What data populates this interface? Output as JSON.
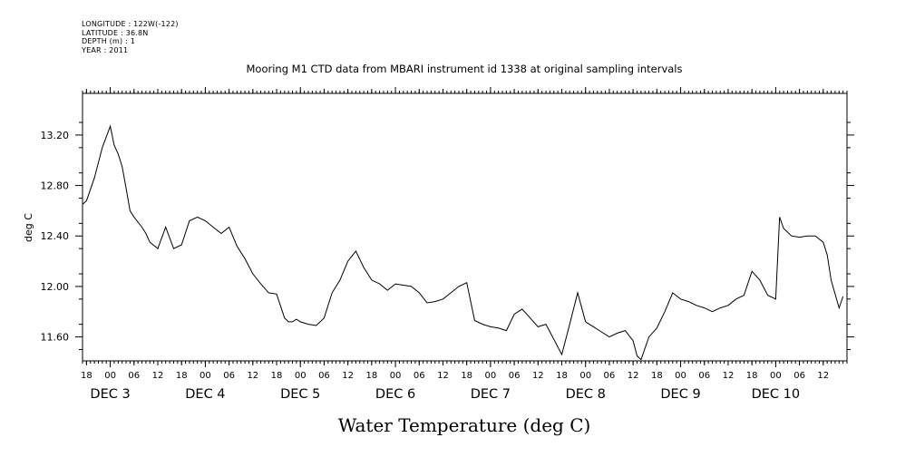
{
  "header": {
    "longitude": "LONGITUDE : 122W(-122)",
    "latitude": "LATITUDE : 36.8N",
    "depth": "DEPTH (m) : 1",
    "year": "YEAR : 2011"
  },
  "chart_data": {
    "type": "line",
    "title": "Mooring M1 CTD data from MBARI instrument id 1338 at original sampling intervals",
    "xlabel": "Water Temperature (deg C)",
    "ylabel": "deg C",
    "ylim": [
      11.41,
      13.53
    ],
    "xlim": [
      "2011-12-02T17:00",
      "2011-12-10T18:00"
    ],
    "y_ticks": [
      "11.60",
      "12.00",
      "12.40",
      "12.80",
      "13.20"
    ],
    "x_hour_labels": [
      "18",
      "00",
      "06",
      "12",
      "18",
      "00",
      "06",
      "12",
      "18",
      "00",
      "06",
      "12",
      "18",
      "00",
      "06",
      "12",
      "18",
      "00",
      "06",
      "12",
      "18",
      "00",
      "06",
      "12",
      "18",
      "00",
      "06",
      "12",
      "18",
      "00",
      "06",
      "12"
    ],
    "x_day_labels": [
      "DEC 3",
      "DEC 4",
      "DEC 5",
      "DEC 6",
      "DEC 7",
      "DEC 8",
      "DEC 9",
      "DEC 10"
    ],
    "grid": false,
    "series": [
      {
        "x": [
          "2011-12-02T17:00",
          "2011-12-02T18:00",
          "2011-12-02T20:00",
          "2011-12-02T22:00",
          "2011-12-03T00:00",
          "2011-12-03T01:00",
          "2011-12-03T02:00",
          "2011-12-03T03:00",
          "2011-12-03T04:00",
          "2011-12-03T05:00",
          "2011-12-03T06:00",
          "2011-12-03T08:00",
          "2011-12-03T09:00",
          "2011-12-03T10:00",
          "2011-12-03T12:00",
          "2011-12-03T14:00",
          "2011-12-03T16:00",
          "2011-12-03T18:00",
          "2011-12-03T20:00",
          "2011-12-03T22:00",
          "2011-12-04T00:00",
          "2011-12-04T02:00",
          "2011-12-04T04:00",
          "2011-12-04T06:00",
          "2011-12-04T08:00",
          "2011-12-04T10:00",
          "2011-12-04T12:00",
          "2011-12-04T14:00",
          "2011-12-04T16:00",
          "2011-12-04T18:00",
          "2011-12-04T20:00",
          "2011-12-04T21:00",
          "2011-12-04T22:00",
          "2011-12-04T23:00",
          "2011-12-05T00:00",
          "2011-12-05T02:00",
          "2011-12-05T04:00",
          "2011-12-05T06:00",
          "2011-12-05T08:00",
          "2011-12-05T10:00",
          "2011-12-05T12:00",
          "2011-12-05T14:00",
          "2011-12-05T16:00",
          "2011-12-05T18:00",
          "2011-12-05T20:00",
          "2011-12-05T22:00",
          "2011-12-06T00:00",
          "2011-12-06T02:00",
          "2011-12-06T04:00",
          "2011-12-06T06:00",
          "2011-12-06T08:00",
          "2011-12-06T10:00",
          "2011-12-06T12:00",
          "2011-12-06T14:00",
          "2011-12-06T16:00",
          "2011-12-06T18:00",
          "2011-12-06T20:00",
          "2011-12-06T22:00",
          "2011-12-07T00:00",
          "2011-12-07T02:00",
          "2011-12-07T04:00",
          "2011-12-07T06:00",
          "2011-12-07T08:00",
          "2011-12-07T10:00",
          "2011-12-07T12:00",
          "2011-12-07T14:00",
          "2011-12-07T16:00",
          "2011-12-07T18:00",
          "2011-12-07T20:00",
          "2011-12-07T22:00",
          "2011-12-08T00:00",
          "2011-12-08T02:00",
          "2011-12-08T04:00",
          "2011-12-08T06:00",
          "2011-12-08T08:00",
          "2011-12-08T10:00",
          "2011-12-08T12:00",
          "2011-12-08T13:00",
          "2011-12-08T14:00",
          "2011-12-08T16:00",
          "2011-12-08T18:00",
          "2011-12-08T20:00",
          "2011-12-08T22:00",
          "2011-12-09T00:00",
          "2011-12-09T02:00",
          "2011-12-09T04:00",
          "2011-12-09T06:00",
          "2011-12-09T08:00",
          "2011-12-09T10:00",
          "2011-12-09T12:00",
          "2011-12-09T14:00",
          "2011-12-09T16:00",
          "2011-12-09T18:00",
          "2011-12-09T20:00",
          "2011-12-09T22:00",
          "2011-12-10T00:00",
          "2011-12-10T01:00",
          "2011-12-10T02:00",
          "2011-12-10T04:00",
          "2011-12-10T06:00",
          "2011-12-10T08:00",
          "2011-12-10T10:00",
          "2011-12-10T12:00",
          "2011-12-10T13:00",
          "2011-12-10T14:00",
          "2011-12-10T16:00",
          "2011-12-10T17:00"
        ],
        "values": [
          12.65,
          12.68,
          12.86,
          13.1,
          13.27,
          13.12,
          13.05,
          12.95,
          12.78,
          12.6,
          12.55,
          12.47,
          12.42,
          12.35,
          12.3,
          12.47,
          12.3,
          12.33,
          12.52,
          12.55,
          12.52,
          12.47,
          12.42,
          12.47,
          12.32,
          12.22,
          12.1,
          12.02,
          11.95,
          11.94,
          11.75,
          11.72,
          11.72,
          11.74,
          11.72,
          11.7,
          11.69,
          11.75,
          11.95,
          12.05,
          12.2,
          12.28,
          12.15,
          12.05,
          12.02,
          11.97,
          12.02,
          12.01,
          12.0,
          11.95,
          11.87,
          11.88,
          11.9,
          11.95,
          12.0,
          12.03,
          11.73,
          11.7,
          11.68,
          11.67,
          11.65,
          11.78,
          11.82,
          11.75,
          11.68,
          11.7,
          11.58,
          11.46,
          11.7,
          11.95,
          11.72,
          11.68,
          11.64,
          11.6,
          11.63,
          11.65,
          11.57,
          11.45,
          11.42,
          11.6,
          11.67,
          11.8,
          11.95,
          11.9,
          11.88,
          11.85,
          11.83,
          11.8,
          11.83,
          11.85,
          11.9,
          11.93,
          12.12,
          12.05,
          11.93,
          11.9,
          12.55,
          12.46,
          12.4,
          12.39,
          12.4,
          12.4,
          12.35,
          12.25,
          12.05,
          11.83,
          11.92
        ]
      }
    ]
  }
}
